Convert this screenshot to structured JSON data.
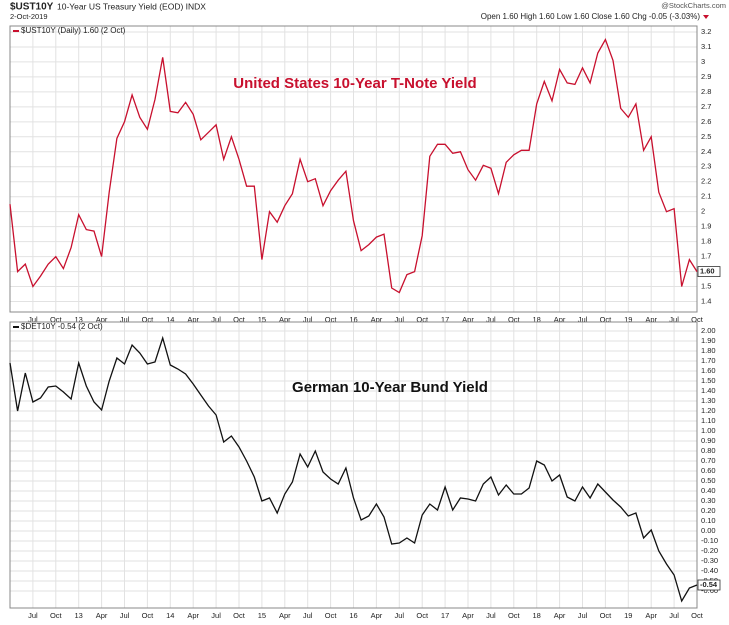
{
  "header": {
    "symbol": "$UST10Y",
    "description": "10-Year US Treasury Yield (EOD) INDX",
    "date": "2-Oct-2019",
    "source": "@StockCharts.com",
    "quote": "Open 1.60 High 1.60 Low 1.60 Close 1.60 Chg -0.05 (-3.03%)"
  },
  "chart_data": [
    {
      "type": "line",
      "legend": "$UST10Y (Daily) 1.60 (2 Oct)",
      "annotation": "United States 10-Year T-Note Yield",
      "last_label": "1.60",
      "color": "#c8102e",
      "grid": true,
      "x": [
        "2012-04",
        "2012-05",
        "2012-06",
        "2012-07",
        "2012-08",
        "2012-09",
        "2012-10",
        "2012-11",
        "2012-12",
        "2013-01",
        "2013-02",
        "2013-03",
        "2013-04",
        "2013-05",
        "2013-06",
        "2013-07",
        "2013-08",
        "2013-09",
        "2013-10",
        "2013-11",
        "2013-12",
        "2014-01",
        "2014-02",
        "2014-03",
        "2014-04",
        "2014-05",
        "2014-06",
        "2014-07",
        "2014-08",
        "2014-09",
        "2014-10",
        "2014-11",
        "2014-12",
        "2015-01",
        "2015-02",
        "2015-03",
        "2015-04",
        "2015-05",
        "2015-06",
        "2015-07",
        "2015-08",
        "2015-09",
        "2015-10",
        "2015-11",
        "2015-12",
        "2016-01",
        "2016-02",
        "2016-03",
        "2016-04",
        "2016-05",
        "2016-06",
        "2016-07",
        "2016-08",
        "2016-09",
        "2016-10",
        "2016-11",
        "2016-12",
        "2017-01",
        "2017-02",
        "2017-03",
        "2017-04",
        "2017-05",
        "2017-06",
        "2017-07",
        "2017-08",
        "2017-09",
        "2017-10",
        "2017-11",
        "2017-12",
        "2018-01",
        "2018-02",
        "2018-03",
        "2018-04",
        "2018-05",
        "2018-06",
        "2018-07",
        "2018-08",
        "2018-09",
        "2018-10",
        "2018-11",
        "2018-12",
        "2019-01",
        "2019-02",
        "2019-03",
        "2019-04",
        "2019-05",
        "2019-06",
        "2019-07",
        "2019-08",
        "2019-09",
        "2019-10"
      ],
      "values": [
        2.05,
        1.6,
        1.65,
        1.5,
        1.57,
        1.65,
        1.7,
        1.62,
        1.76,
        1.98,
        1.88,
        1.87,
        1.7,
        2.13,
        2.49,
        2.6,
        2.78,
        2.63,
        2.55,
        2.75,
        3.03,
        2.67,
        2.66,
        2.73,
        2.65,
        2.48,
        2.53,
        2.58,
        2.35,
        2.5,
        2.35,
        2.17,
        2.17,
        1.68,
        2.0,
        1.93,
        2.04,
        2.12,
        2.35,
        2.2,
        2.22,
        2.04,
        2.14,
        2.21,
        2.27,
        1.94,
        1.74,
        1.78,
        1.83,
        1.85,
        1.49,
        1.46,
        1.58,
        1.6,
        1.84,
        2.37,
        2.45,
        2.45,
        2.39,
        2.4,
        2.28,
        2.21,
        2.31,
        2.29,
        2.12,
        2.33,
        2.38,
        2.41,
        2.41,
        2.72,
        2.87,
        2.74,
        2.95,
        2.86,
        2.85,
        2.96,
        2.86,
        3.06,
        3.15,
        3.01,
        2.69,
        2.63,
        2.72,
        2.41,
        2.5,
        2.13,
        2.0,
        2.02,
        1.5,
        1.68,
        1.6
      ],
      "xlim": [
        "2012-04",
        "2019-10"
      ],
      "xticks": [
        {
          "value": "2012-07",
          "label": "Jul"
        },
        {
          "value": "2012-10",
          "label": "Oct"
        },
        {
          "value": "2013-01",
          "label": "13"
        },
        {
          "value": "2013-04",
          "label": "Apr"
        },
        {
          "value": "2013-07",
          "label": "Jul"
        },
        {
          "value": "2013-10",
          "label": "Oct"
        },
        {
          "value": "2014-01",
          "label": "14"
        },
        {
          "value": "2014-04",
          "label": "Apr"
        },
        {
          "value": "2014-07",
          "label": "Jul"
        },
        {
          "value": "2014-10",
          "label": "Oct"
        },
        {
          "value": "2015-01",
          "label": "15"
        },
        {
          "value": "2015-04",
          "label": "Apr"
        },
        {
          "value": "2015-07",
          "label": "Jul"
        },
        {
          "value": "2015-10",
          "label": "Oct"
        },
        {
          "value": "2016-01",
          "label": "16"
        },
        {
          "value": "2016-04",
          "label": "Apr"
        },
        {
          "value": "2016-07",
          "label": "Jul"
        },
        {
          "value": "2016-10",
          "label": "Oct"
        },
        {
          "value": "2017-01",
          "label": "17"
        },
        {
          "value": "2017-04",
          "label": "Apr"
        },
        {
          "value": "2017-07",
          "label": "Jul"
        },
        {
          "value": "2017-10",
          "label": "Oct"
        },
        {
          "value": "2018-01",
          "label": "18"
        },
        {
          "value": "2018-04",
          "label": "Apr"
        },
        {
          "value": "2018-07",
          "label": "Jul"
        },
        {
          "value": "2018-10",
          "label": "Oct"
        },
        {
          "value": "2019-01",
          "label": "19"
        },
        {
          "value": "2019-04",
          "label": "Apr"
        },
        {
          "value": "2019-07",
          "label": "Jul"
        },
        {
          "value": "2019-10",
          "label": "Oct"
        }
      ],
      "ylim": [
        1.33,
        3.24
      ],
      "yticks": [
        1.4,
        1.5,
        1.6,
        1.7,
        1.8,
        1.9,
        2.0,
        2.1,
        2.2,
        2.3,
        2.4,
        2.5,
        2.6,
        2.7,
        2.8,
        2.9,
        3.0,
        3.1,
        3.2
      ]
    },
    {
      "type": "line",
      "legend": "$DET10Y -0.54 (2 Oct)",
      "annotation": "German 10-Year Bund Yield",
      "last_label": "-0.54",
      "color": "#111111",
      "grid": true,
      "x": [
        "2012-04",
        "2012-05",
        "2012-06",
        "2012-07",
        "2012-08",
        "2012-09",
        "2012-10",
        "2012-11",
        "2012-12",
        "2013-01",
        "2013-02",
        "2013-03",
        "2013-04",
        "2013-05",
        "2013-06",
        "2013-07",
        "2013-08",
        "2013-09",
        "2013-10",
        "2013-11",
        "2013-12",
        "2014-01",
        "2014-02",
        "2014-03",
        "2014-04",
        "2014-05",
        "2014-06",
        "2014-07",
        "2014-08",
        "2014-09",
        "2014-10",
        "2014-11",
        "2014-12",
        "2015-01",
        "2015-02",
        "2015-03",
        "2015-04",
        "2015-05",
        "2015-06",
        "2015-07",
        "2015-08",
        "2015-09",
        "2015-10",
        "2015-11",
        "2015-12",
        "2016-01",
        "2016-02",
        "2016-03",
        "2016-04",
        "2016-05",
        "2016-06",
        "2016-07",
        "2016-08",
        "2016-09",
        "2016-10",
        "2016-11",
        "2016-12",
        "2017-01",
        "2017-02",
        "2017-03",
        "2017-04",
        "2017-05",
        "2017-06",
        "2017-07",
        "2017-08",
        "2017-09",
        "2017-10",
        "2017-11",
        "2017-12",
        "2018-01",
        "2018-02",
        "2018-03",
        "2018-04",
        "2018-05",
        "2018-06",
        "2018-07",
        "2018-08",
        "2018-09",
        "2018-10",
        "2018-11",
        "2018-12",
        "2019-01",
        "2019-02",
        "2019-03",
        "2019-04",
        "2019-05",
        "2019-06",
        "2019-07",
        "2019-08",
        "2019-09",
        "2019-10"
      ],
      "values": [
        1.68,
        1.2,
        1.58,
        1.29,
        1.33,
        1.44,
        1.45,
        1.39,
        1.32,
        1.68,
        1.45,
        1.29,
        1.21,
        1.5,
        1.73,
        1.67,
        1.86,
        1.78,
        1.67,
        1.69,
        1.93,
        1.66,
        1.62,
        1.57,
        1.47,
        1.36,
        1.25,
        1.16,
        0.89,
        0.95,
        0.84,
        0.7,
        0.54,
        0.3,
        0.33,
        0.18,
        0.37,
        0.49,
        0.77,
        0.64,
        0.8,
        0.59,
        0.52,
        0.47,
        0.63,
        0.33,
        0.11,
        0.15,
        0.27,
        0.14,
        -0.13,
        -0.12,
        -0.07,
        -0.12,
        0.16,
        0.27,
        0.21,
        0.44,
        0.21,
        0.33,
        0.32,
        0.3,
        0.47,
        0.54,
        0.36,
        0.46,
        0.37,
        0.37,
        0.43,
        0.7,
        0.66,
        0.5,
        0.56,
        0.34,
        0.3,
        0.44,
        0.33,
        0.47,
        0.39,
        0.31,
        0.24,
        0.15,
        0.18,
        -0.07,
        0.01,
        -0.2,
        -0.33,
        -0.44,
        -0.7,
        -0.57,
        -0.54
      ],
      "xlim": [
        "2012-04",
        "2019-10"
      ],
      "xticks": [
        {
          "value": "2012-07",
          "label": "Jul"
        },
        {
          "value": "2012-10",
          "label": "Oct"
        },
        {
          "value": "2013-01",
          "label": "13"
        },
        {
          "value": "2013-04",
          "label": "Apr"
        },
        {
          "value": "2013-07",
          "label": "Jul"
        },
        {
          "value": "2013-10",
          "label": "Oct"
        },
        {
          "value": "2014-01",
          "label": "14"
        },
        {
          "value": "2014-04",
          "label": "Apr"
        },
        {
          "value": "2014-07",
          "label": "Jul"
        },
        {
          "value": "2014-10",
          "label": "Oct"
        },
        {
          "value": "2015-01",
          "label": "15"
        },
        {
          "value": "2015-04",
          "label": "Apr"
        },
        {
          "value": "2015-07",
          "label": "Jul"
        },
        {
          "value": "2015-10",
          "label": "Oct"
        },
        {
          "value": "2016-01",
          "label": "16"
        },
        {
          "value": "2016-04",
          "label": "Apr"
        },
        {
          "value": "2016-07",
          "label": "Jul"
        },
        {
          "value": "2016-10",
          "label": "Oct"
        },
        {
          "value": "2017-01",
          "label": "17"
        },
        {
          "value": "2017-04",
          "label": "Apr"
        },
        {
          "value": "2017-07",
          "label": "Jul"
        },
        {
          "value": "2017-10",
          "label": "Oct"
        },
        {
          "value": "2018-01",
          "label": "18"
        },
        {
          "value": "2018-04",
          "label": "Apr"
        },
        {
          "value": "2018-07",
          "label": "Jul"
        },
        {
          "value": "2018-10",
          "label": "Oct"
        },
        {
          "value": "2019-01",
          "label": "19"
        },
        {
          "value": "2019-04",
          "label": "Apr"
        },
        {
          "value": "2019-07",
          "label": "Jul"
        },
        {
          "value": "2019-10",
          "label": "Oct"
        }
      ],
      "ylim": [
        -0.77,
        2.09
      ],
      "yticks": [
        {
          "value": 2.0,
          "label": "2.00"
        },
        {
          "value": 1.9,
          "label": "1.90"
        },
        {
          "value": 1.8,
          "label": "1.80"
        },
        {
          "value": 1.7,
          "label": "1.70"
        },
        {
          "value": 1.6,
          "label": "1.60"
        },
        {
          "value": 1.5,
          "label": "1.50"
        },
        {
          "value": 1.4,
          "label": "1.40"
        },
        {
          "value": 1.3,
          "label": "1.30"
        },
        {
          "value": 1.2,
          "label": "1.20"
        },
        {
          "value": 1.1,
          "label": "1.10"
        },
        {
          "value": 1.0,
          "label": "1.00"
        },
        {
          "value": 0.9,
          "label": "0.90"
        },
        {
          "value": 0.8,
          "label": "0.80"
        },
        {
          "value": 0.7,
          "label": "0.70"
        },
        {
          "value": 0.6,
          "label": "0.60"
        },
        {
          "value": 0.5,
          "label": "0.50"
        },
        {
          "value": 0.4,
          "label": "0.40"
        },
        {
          "value": 0.3,
          "label": "0.30"
        },
        {
          "value": 0.2,
          "label": "0.20"
        },
        {
          "value": 0.1,
          "label": "0.10"
        },
        {
          "value": 0.0,
          "label": "0.00"
        },
        {
          "value": -0.1,
          "label": "-0.10"
        },
        {
          "value": -0.2,
          "label": "-0.20"
        },
        {
          "value": -0.3,
          "label": "-0.30"
        },
        {
          "value": -0.4,
          "label": "-0.40"
        },
        {
          "value": -0.5,
          "label": "-0.50"
        },
        {
          "value": -0.6,
          "label": "-0.60"
        }
      ]
    }
  ]
}
